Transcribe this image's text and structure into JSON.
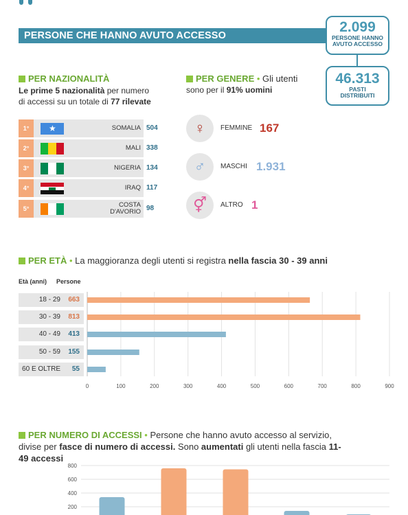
{
  "banner": {
    "title": "PERSONE CHE HANNO AVUTO ACCESSO"
  },
  "stats": {
    "access_count": "2.099",
    "access_label_1": "PERSONE HANNO",
    "access_label_2": "AVUTO ACCESSO",
    "meals_count": "46.313",
    "meals_label_1": "PASTI",
    "meals_label_2": "DISTRIBUITI"
  },
  "nationality": {
    "heading": "PER NAZIONALITÀ",
    "sub_bold_1": "Le prime 5 nazionalità",
    "sub_text_1": " per numero",
    "sub_text_2": "di accessi su un totale di ",
    "sub_bold_2": "77 rilevate",
    "rows": [
      {
        "rank": "1°",
        "name": "SOMALIA",
        "value": "504",
        "flag": "somalia-flag"
      },
      {
        "rank": "2°",
        "name": "MALI",
        "value": "338",
        "flag": "mali-flag"
      },
      {
        "rank": "3°",
        "name": "NIGERIA",
        "value": "134",
        "flag": "nigeria-flag"
      },
      {
        "rank": "4°",
        "name": "IRAQ",
        "value": "117",
        "flag": "iraq-flag"
      },
      {
        "rank": "5°",
        "name_1": "COSTA",
        "name_2": "D'AVORIO",
        "value": "98",
        "flag": "ivory-coast-flag"
      }
    ]
  },
  "gender": {
    "heading": "PER GENERE",
    "dot": " • ",
    "sub_text_1": "Gli utenti",
    "sub_text_2": "sono per il ",
    "sub_bold": "91% uomini",
    "rows": [
      {
        "label": "FEMMINE",
        "value": "167",
        "color": "#c0392b",
        "icon": "female-icon",
        "icon_color": "#b03a2e"
      },
      {
        "label": "MASCHI",
        "value": "1.931",
        "color": "#8fb3d9",
        "icon": "male-icon",
        "icon_color": "#7fa9d6"
      },
      {
        "label": "ALTRO",
        "value": "1",
        "color": "#e05a9a",
        "icon": "transgender-icon",
        "icon_color": "#e05a9a"
      }
    ]
  },
  "age": {
    "heading": "PER ETÀ",
    "dot": " • ",
    "sub_text": "La maggioranza degli utenti si registra ",
    "sub_bold": "nella fascia 30 - 39 anni",
    "col_1": "Età (anni)",
    "col_2": "Persone"
  },
  "accessi": {
    "heading": "PER NUMERO DI ACCESSI",
    "dot": " • ",
    "sub_text_1": "Persone che hanno avuto accesso al servizio, divise per ",
    "sub_bold_1": "fasce di numero di accessi.",
    "sub_text_2": " Sono ",
    "sub_bold_2": "aumentati",
    "sub_text_3": " gli utenti nella fascia ",
    "sub_bold_3": "11-49 accessi"
  },
  "chart_data": [
    {
      "type": "bar",
      "orientation": "horizontal",
      "categories": [
        "18 - 29",
        "30 - 39",
        "40 - 49",
        "50 - 59",
        "60 E OLTRE"
      ],
      "values": [
        663,
        813,
        413,
        155,
        55
      ],
      "value_labels": [
        "663",
        "813",
        "413",
        "155",
        "55"
      ],
      "colors": [
        "#f4a97a",
        "#f4a97a",
        "#8bb8cf",
        "#8bb8cf",
        "#8bb8cf"
      ],
      "label_colors": [
        "#d9774a",
        "#d9774a",
        "#2f6f8a",
        "#2f6f8a",
        "#2f6f8a"
      ],
      "xlim": [
        0,
        900
      ],
      "xticks": [
        0,
        100,
        200,
        300,
        400,
        500,
        600,
        700,
        800,
        900
      ],
      "grid": true
    },
    {
      "type": "bar",
      "orientation": "vertical",
      "values": [
        340,
        760,
        745,
        140,
        90
      ],
      "colors": [
        "#8bb8cf",
        "#f4a97a",
        "#f4a97a",
        "#8bb8cf",
        "#8bb8cf"
      ],
      "ylim": [
        0,
        800
      ],
      "yticks": [
        200,
        400,
        600,
        800
      ],
      "grid": true
    }
  ]
}
